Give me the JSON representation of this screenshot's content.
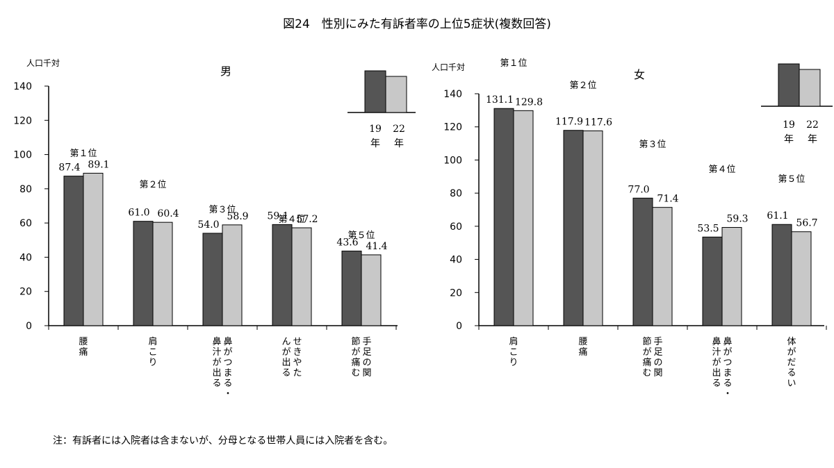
{
  "title": "図24　性別にみた有訴者率の上位5症状(複数回答)",
  "note": "注：有訴者には入院者は含まないが、分母となる世帯人員には入院者を含む。",
  "colors": {
    "y2019": "#555555",
    "y2022": "#c8c8c8",
    "axis": "#000000"
  },
  "chart_data": [
    {
      "type": "bar",
      "title": "男",
      "ylabel": "人口千対",
      "ylim": [
        0,
        140
      ],
      "yticks": [
        0,
        20,
        40,
        60,
        80,
        100,
        120,
        140
      ],
      "legend": {
        "labels": [
          "19\n年",
          "22\n年"
        ]
      },
      "categories": [
        "腰痛",
        "肩こり",
        "鼻がつまる・鼻汁が出る",
        "せきやたんが出る",
        "手足の関節が痛む"
      ],
      "ranks": [
        "第１位",
        "第２位",
        "第３位",
        "第４位",
        "第５位"
      ],
      "series": [
        {
          "name": "19年",
          "values": [
            87.4,
            61.0,
            54.0,
            59.1,
            43.6
          ]
        },
        {
          "name": "22年",
          "values": [
            89.1,
            60.4,
            58.9,
            57.2,
            41.4
          ]
        }
      ],
      "value_labels": [
        [
          "87.4",
          "61.0",
          "54.0",
          "59.1",
          "43.6"
        ],
        [
          "89.1",
          "60.4",
          "58.9",
          "57.2",
          "41.4"
        ]
      ]
    },
    {
      "type": "bar",
      "title": "女",
      "ylabel": "人口千対",
      "ylim": [
        0,
        140
      ],
      "yticks": [
        0,
        20,
        40,
        60,
        80,
        100,
        120,
        140
      ],
      "legend": {
        "labels": [
          "19\n年",
          "22\n年"
        ]
      },
      "categories": [
        "肩こり",
        "腰痛",
        "手足の関節が痛む",
        "鼻がつまる・鼻汁が出る",
        "体がだるい"
      ],
      "ranks": [
        "第１位",
        "第２位",
        "第３位",
        "第４位",
        "第５位"
      ],
      "series": [
        {
          "name": "19年",
          "values": [
            131.1,
            117.9,
            77.0,
            53.5,
            61.1
          ]
        },
        {
          "name": "22年",
          "values": [
            129.8,
            117.6,
            71.4,
            59.3,
            56.7
          ]
        }
      ],
      "value_labels": [
        [
          "131.1",
          "117.9",
          "77.0",
          "53.5",
          "61.1"
        ],
        [
          "129.8",
          "117.6",
          "71.4",
          "59.3",
          "56.7"
        ]
      ]
    }
  ]
}
